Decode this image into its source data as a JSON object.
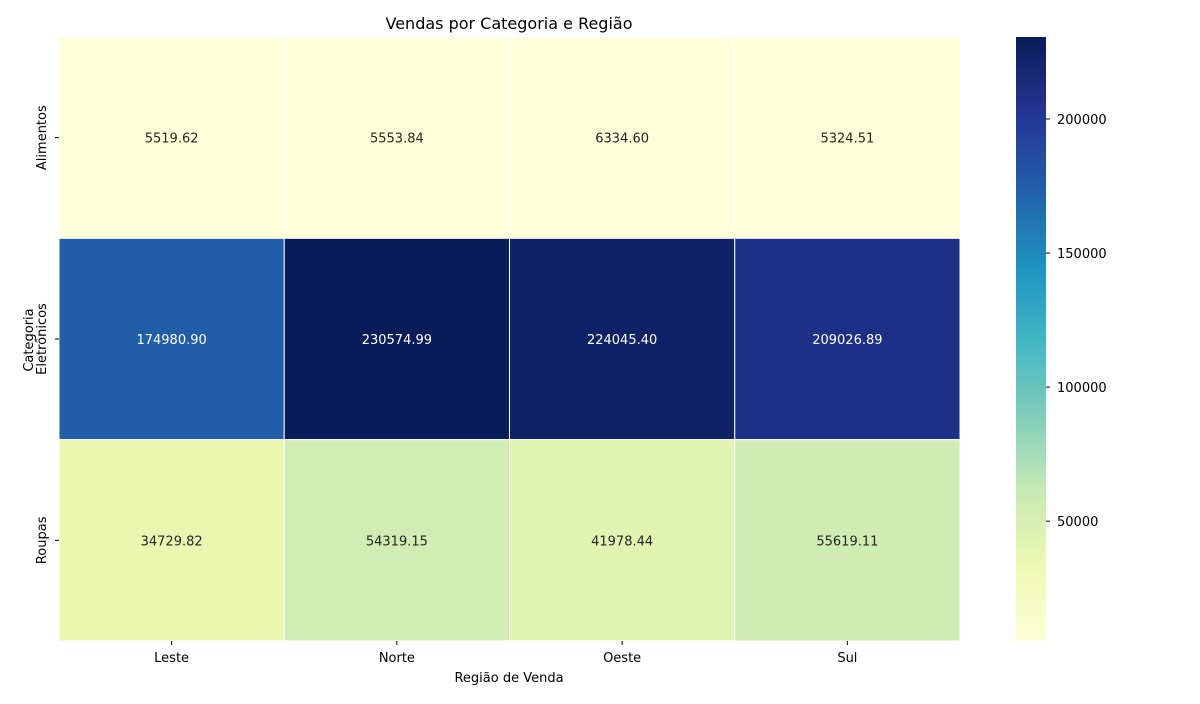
{
  "chart_data": {
    "type": "heatmap",
    "title": "Vendas por Categoria e Região",
    "xlabel": "Região de Venda",
    "ylabel": "Categoria",
    "x_categories": [
      "Leste",
      "Norte",
      "Oeste",
      "Sul"
    ],
    "y_categories": [
      "Alimentos",
      "Eletrônicos",
      "Roupas"
    ],
    "values": [
      [
        5519.62,
        5553.84,
        6334.6,
        5324.51
      ],
      [
        174980.9,
        230574.99,
        224045.4,
        209026.89
      ],
      [
        34729.82,
        54319.15,
        41978.44,
        55619.11
      ]
    ],
    "value_labels": [
      [
        "5519.62",
        "5553.84",
        "6334.60",
        "5324.51"
      ],
      [
        "174980.90",
        "230574.99",
        "224045.40",
        "209026.89"
      ],
      [
        "34729.82",
        "54319.15",
        "41978.44",
        "55619.11"
      ]
    ],
    "colormap": "YlGnBu",
    "colorbar": {
      "range": [
        5324.51,
        230574.99
      ],
      "ticks": [
        50000,
        100000,
        150000,
        200000
      ],
      "tick_labels": [
        "50000",
        "100000",
        "150000",
        "200000"
      ]
    },
    "legend": "colorbar-right",
    "grid": false
  }
}
